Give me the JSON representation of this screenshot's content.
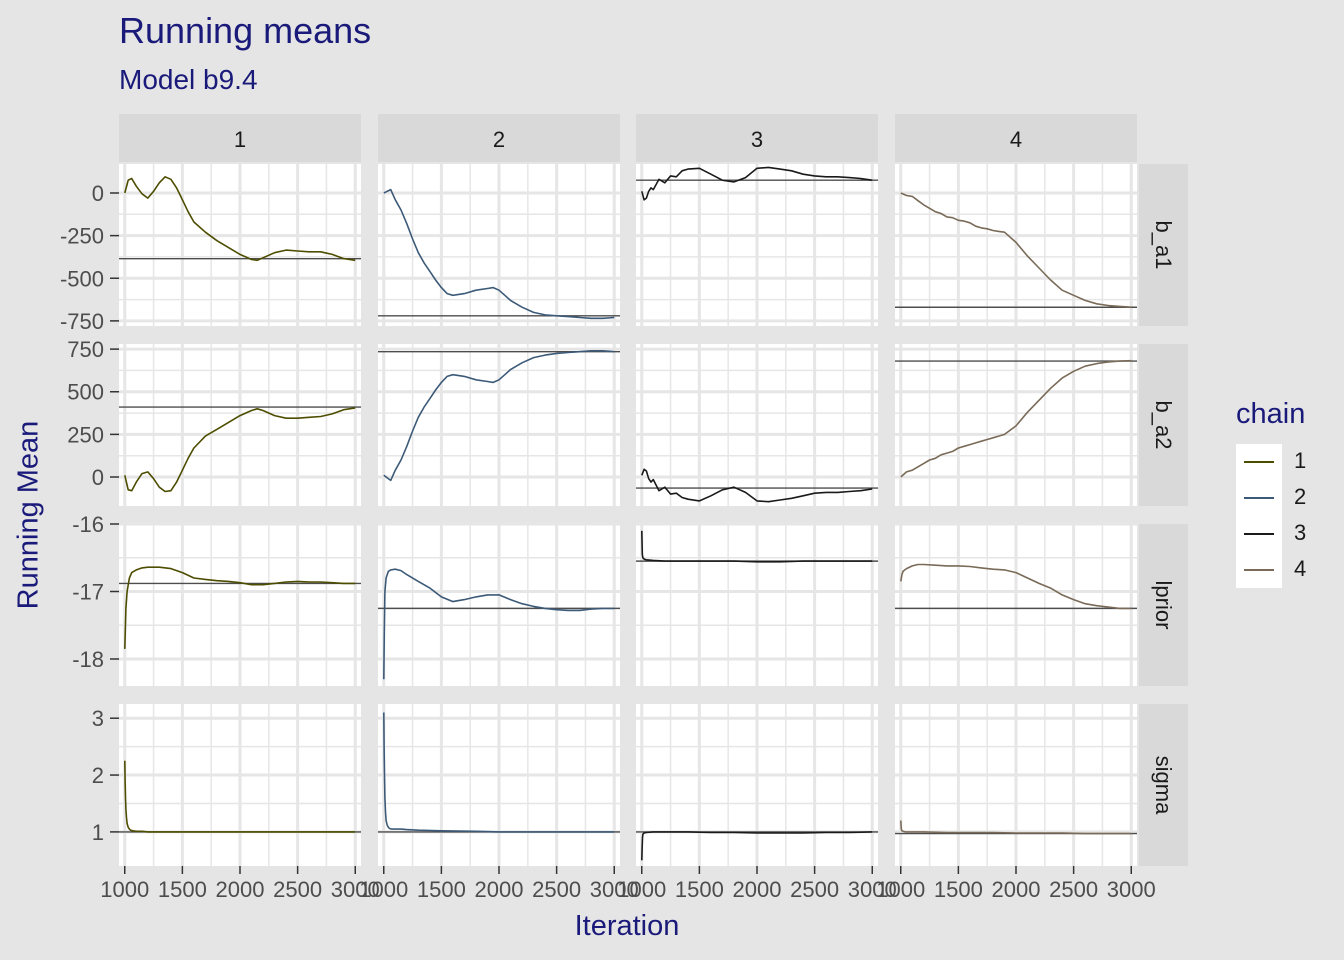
{
  "title": "Running means",
  "subtitle": "Model b9.4",
  "chart_data": {
    "type": "line",
    "title": "Running means",
    "subtitle": "Model b9.4",
    "xlabel": "Iteration",
    "ylabel": "Running Mean",
    "facet_columns": [
      "1",
      "2",
      "3",
      "4"
    ],
    "facet_rows": [
      "b_a1",
      "b_a2",
      "lprior",
      "sigma"
    ],
    "x_ticks": [
      1000,
      1500,
      2000,
      2500,
      3000
    ],
    "x_tick_labels": [
      "1000",
      "1500",
      "2000",
      "2500",
      "3000"
    ],
    "xlim": [
      950,
      3050
    ],
    "grid": true,
    "legend": {
      "title": "chain",
      "placement": "right",
      "entries": [
        "1",
        "2",
        "3",
        "4"
      ]
    },
    "colors": {
      "1": "#4d4d00",
      "2": "#3c5a78",
      "3": "#1a1a1a",
      "4": "#7a6a58",
      "reference": "#4d4d4d",
      "panel": "#ffffff",
      "grid": "#e6e6e6",
      "strip": "#d9d9d9",
      "text": "#1a1a7a"
    },
    "rows": {
      "b_a1": {
        "ylim": [
          -780,
          170
        ],
        "y_ticks": [
          0,
          -250,
          -500,
          -750
        ],
        "y_tick_labels": [
          "0",
          "-250",
          "-500",
          "-750"
        ]
      },
      "b_a2": {
        "ylim": [
          -170,
          780
        ],
        "y_ticks": [
          750,
          500,
          250,
          0
        ],
        "y_tick_labels": [
          "750",
          "500",
          "250",
          "0"
        ]
      },
      "lprior": {
        "ylim": [
          -18.4,
          -16
        ],
        "y_ticks": [
          -16,
          -17,
          -18
        ],
        "y_tick_labels": [
          "-16",
          "-17",
          "-18"
        ]
      },
      "sigma": {
        "ylim": [
          0.4,
          3.25
        ],
        "y_ticks": [
          3,
          2,
          1
        ],
        "y_tick_labels": [
          "3",
          "2",
          "1"
        ]
      }
    },
    "panels": [
      {
        "chain": "1",
        "parameter": "b_a1",
        "reference": -385,
        "x": [
          1000,
          1030,
          1060,
          1100,
          1150,
          1200,
          1250,
          1300,
          1350,
          1400,
          1450,
          1500,
          1550,
          1600,
          1700,
          1800,
          1900,
          2000,
          2100,
          2150,
          2200,
          2300,
          2400,
          2500,
          2600,
          2700,
          2800,
          2900,
          3000
        ],
        "y": [
          0,
          75,
          85,
          40,
          -5,
          -30,
          10,
          60,
          95,
          80,
          30,
          -40,
          -110,
          -170,
          -230,
          -280,
          -320,
          -360,
          -390,
          -395,
          -380,
          -350,
          -335,
          -340,
          -345,
          -345,
          -360,
          -385,
          -395
        ]
      },
      {
        "chain": "2",
        "parameter": "b_a1",
        "reference": -720,
        "x": [
          1000,
          1030,
          1060,
          1080,
          1100,
          1150,
          1200,
          1250,
          1300,
          1350,
          1400,
          1450,
          1500,
          1550,
          1600,
          1700,
          1800,
          1900,
          1950,
          2000,
          2050,
          2100,
          2200,
          2300,
          2400,
          2500,
          2600,
          2700,
          2800,
          2900,
          3000
        ],
        "y": [
          0,
          10,
          20,
          -10,
          -40,
          -100,
          -180,
          -270,
          -350,
          -410,
          -460,
          -510,
          -555,
          -590,
          -600,
          -590,
          -570,
          -560,
          -555,
          -570,
          -600,
          -630,
          -670,
          -700,
          -715,
          -720,
          -725,
          -730,
          -735,
          -735,
          -730
        ]
      },
      {
        "chain": "3",
        "parameter": "b_a1",
        "reference": 75,
        "x": [
          1000,
          1020,
          1040,
          1060,
          1080,
          1100,
          1150,
          1200,
          1250,
          1300,
          1350,
          1400,
          1500,
          1600,
          1700,
          1800,
          1900,
          2000,
          2100,
          2200,
          2300,
          2400,
          2500,
          2600,
          2700,
          2800,
          2900,
          3000
        ],
        "y": [
          10,
          -40,
          -30,
          10,
          30,
          20,
          80,
          60,
          100,
          95,
          130,
          140,
          145,
          110,
          75,
          65,
          90,
          145,
          150,
          140,
          130,
          110,
          100,
          95,
          95,
          90,
          85,
          75
        ]
      },
      {
        "chain": "4",
        "parameter": "b_a1",
        "reference": -670,
        "x": [
          1000,
          1050,
          1100,
          1150,
          1200,
          1250,
          1300,
          1350,
          1400,
          1450,
          1500,
          1550,
          1600,
          1650,
          1700,
          1750,
          1800,
          1850,
          1900,
          2000,
          2100,
          2200,
          2300,
          2400,
          2500,
          2600,
          2700,
          2800,
          2900,
          3000
        ],
        "y": [
          0,
          -15,
          -20,
          -45,
          -70,
          -90,
          -110,
          -120,
          -140,
          -145,
          -160,
          -165,
          -175,
          -195,
          -205,
          -210,
          -220,
          -225,
          -230,
          -290,
          -370,
          -440,
          -510,
          -570,
          -600,
          -630,
          -650,
          -660,
          -665,
          -670
        ]
      },
      {
        "chain": "1",
        "parameter": "b_a2",
        "reference": 410,
        "x": [
          1000,
          1030,
          1060,
          1100,
          1150,
          1200,
          1250,
          1300,
          1350,
          1400,
          1450,
          1500,
          1550,
          1600,
          1700,
          1800,
          1900,
          2000,
          2100,
          2150,
          2200,
          2300,
          2400,
          2500,
          2600,
          2700,
          2800,
          2900,
          3000
        ],
        "y": [
          10,
          -75,
          -80,
          -30,
          20,
          30,
          -10,
          -60,
          -85,
          -80,
          -30,
          40,
          110,
          170,
          240,
          280,
          320,
          360,
          390,
          400,
          390,
          360,
          345,
          345,
          350,
          355,
          370,
          395,
          405
        ]
      },
      {
        "chain": "2",
        "parameter": "b_a2",
        "reference": 735,
        "x": [
          1000,
          1030,
          1060,
          1080,
          1100,
          1150,
          1200,
          1250,
          1300,
          1350,
          1400,
          1450,
          1500,
          1550,
          1600,
          1700,
          1800,
          1900,
          1950,
          2000,
          2050,
          2100,
          2200,
          2300,
          2400,
          2500,
          2600,
          2700,
          2800,
          2900,
          3000
        ],
        "y": [
          10,
          -5,
          -20,
          10,
          40,
          100,
          180,
          270,
          350,
          410,
          460,
          510,
          555,
          590,
          600,
          590,
          570,
          560,
          555,
          570,
          600,
          630,
          670,
          700,
          715,
          725,
          730,
          735,
          740,
          740,
          735
        ]
      },
      {
        "chain": "3",
        "parameter": "b_a2",
        "reference": -65,
        "x": [
          1000,
          1020,
          1040,
          1060,
          1080,
          1100,
          1150,
          1200,
          1250,
          1300,
          1350,
          1400,
          1500,
          1600,
          1700,
          1800,
          1900,
          2000,
          2100,
          2200,
          2300,
          2400,
          2500,
          2600,
          2700,
          2800,
          2900,
          3000
        ],
        "y": [
          10,
          45,
          35,
          -10,
          -30,
          -15,
          -80,
          -60,
          -100,
          -95,
          -120,
          -130,
          -140,
          -110,
          -75,
          -60,
          -90,
          -140,
          -145,
          -135,
          -125,
          -110,
          -95,
          -90,
          -90,
          -85,
          -80,
          -70
        ]
      },
      {
        "chain": "4",
        "parameter": "b_a2",
        "reference": 680,
        "x": [
          1000,
          1050,
          1100,
          1150,
          1200,
          1250,
          1300,
          1350,
          1400,
          1450,
          1500,
          1550,
          1600,
          1650,
          1700,
          1750,
          1800,
          1850,
          1900,
          2000,
          2100,
          2200,
          2300,
          2400,
          2500,
          2600,
          2700,
          2800,
          2900,
          3000
        ],
        "y": [
          0,
          30,
          40,
          60,
          80,
          100,
          110,
          130,
          140,
          150,
          170,
          180,
          190,
          200,
          210,
          220,
          230,
          240,
          250,
          300,
          380,
          450,
          520,
          580,
          620,
          650,
          665,
          675,
          680,
          682
        ]
      },
      {
        "chain": "1",
        "parameter": "lprior",
        "reference": -16.88,
        "x": [
          1000,
          1010,
          1020,
          1040,
          1060,
          1100,
          1150,
          1200,
          1300,
          1400,
          1500,
          1600,
          1700,
          1800,
          1900,
          2000,
          2100,
          2200,
          2300,
          2400,
          2500,
          2600,
          2700,
          2800,
          2900,
          3000
        ],
        "y": [
          -17.85,
          -17.25,
          -17.0,
          -16.8,
          -16.72,
          -16.68,
          -16.65,
          -16.64,
          -16.64,
          -16.66,
          -16.72,
          -16.8,
          -16.82,
          -16.84,
          -16.85,
          -16.87,
          -16.9,
          -16.9,
          -16.88,
          -16.86,
          -16.85,
          -16.86,
          -16.86,
          -16.87,
          -16.88,
          -16.88
        ]
      },
      {
        "chain": "2",
        "parameter": "lprior",
        "reference": -17.25,
        "x": [
          1000,
          1005,
          1010,
          1020,
          1040,
          1060,
          1100,
          1150,
          1200,
          1300,
          1400,
          1500,
          1600,
          1700,
          1800,
          1900,
          2000,
          2100,
          2200,
          2300,
          2400,
          2500,
          2600,
          2700,
          2800,
          2900,
          3000
        ],
        "y": [
          -18.3,
          -17.6,
          -17.0,
          -16.8,
          -16.7,
          -16.68,
          -16.67,
          -16.69,
          -16.75,
          -16.85,
          -16.95,
          -17.08,
          -17.15,
          -17.12,
          -17.08,
          -17.05,
          -17.05,
          -17.12,
          -17.18,
          -17.22,
          -17.25,
          -17.27,
          -17.28,
          -17.28,
          -17.26,
          -17.25,
          -17.25
        ]
      },
      {
        "chain": "3",
        "parameter": "lprior",
        "reference": -16.55,
        "x": [
          1000,
          1005,
          1010,
          1020,
          1040,
          1100,
          1200,
          1400,
          1600,
          1800,
          2000,
          2200,
          2400,
          2600,
          2800,
          3000
        ],
        "y": [
          -16.1,
          -16.45,
          -16.5,
          -16.52,
          -16.53,
          -16.54,
          -16.55,
          -16.55,
          -16.55,
          -16.55,
          -16.56,
          -16.56,
          -16.55,
          -16.55,
          -16.55,
          -16.55
        ]
      },
      {
        "chain": "4",
        "parameter": "lprior",
        "reference": -17.25,
        "x": [
          1000,
          1010,
          1020,
          1050,
          1100,
          1150,
          1200,
          1300,
          1400,
          1500,
          1600,
          1700,
          1800,
          1900,
          2000,
          2100,
          2200,
          2300,
          2400,
          2500,
          2600,
          2700,
          2800,
          2900,
          3000
        ],
        "y": [
          -16.85,
          -16.75,
          -16.7,
          -16.66,
          -16.62,
          -16.6,
          -16.6,
          -16.61,
          -16.62,
          -16.62,
          -16.63,
          -16.65,
          -16.67,
          -16.68,
          -16.72,
          -16.8,
          -16.88,
          -16.95,
          -17.05,
          -17.12,
          -17.18,
          -17.21,
          -17.23,
          -17.25,
          -17.25
        ]
      },
      {
        "chain": "1",
        "parameter": "sigma",
        "reference": 1.0,
        "x": [
          1000,
          1003,
          1006,
          1010,
          1015,
          1020,
          1030,
          1040,
          1050,
          1070,
          1100,
          1150,
          1200,
          1300,
          1500,
          1800,
          2000,
          2400,
          2800,
          3000
        ],
        "y": [
          2.25,
          1.9,
          1.6,
          1.4,
          1.25,
          1.15,
          1.08,
          1.05,
          1.03,
          1.02,
          1.01,
          1.01,
          1.0,
          1.0,
          1.0,
          1.0,
          1.0,
          1.0,
          1.0,
          1.0
        ]
      },
      {
        "chain": "2",
        "parameter": "sigma",
        "reference": 1.0,
        "x": [
          1000,
          1003,
          1006,
          1010,
          1015,
          1020,
          1030,
          1040,
          1050,
          1070,
          1100,
          1150,
          1200,
          1300,
          1500,
          1800,
          2000,
          2400,
          2800,
          3000
        ],
        "y": [
          3.1,
          2.5,
          2.0,
          1.6,
          1.35,
          1.2,
          1.12,
          1.08,
          1.06,
          1.05,
          1.05,
          1.05,
          1.04,
          1.03,
          1.02,
          1.01,
          1.0,
          1.0,
          1.0,
          1.0
        ]
      },
      {
        "chain": "3",
        "parameter": "sigma",
        "reference": 1.0,
        "x": [
          1000,
          1003,
          1006,
          1010,
          1020,
          1040,
          1100,
          1200,
          1400,
          1600,
          1800,
          2000,
          2200,
          2400,
          2600,
          2800,
          3000
        ],
        "y": [
          0.5,
          0.7,
          0.9,
          0.96,
          0.98,
          0.99,
          1.0,
          1.0,
          1.0,
          0.99,
          0.99,
          0.98,
          0.98,
          0.98,
          0.99,
          0.99,
          1.0
        ]
      },
      {
        "chain": "4",
        "parameter": "sigma",
        "reference": 0.97,
        "x": [
          1000,
          1005,
          1010,
          1020,
          1040,
          1100,
          1200,
          1400,
          1600,
          1800,
          2000,
          2200,
          2400,
          2600,
          2800,
          3000
        ],
        "y": [
          1.2,
          1.05,
          1.02,
          1.01,
          1.0,
          1.0,
          1.0,
          0.99,
          0.99,
          0.99,
          0.98,
          0.98,
          0.98,
          0.97,
          0.97,
          0.97
        ]
      }
    ]
  }
}
